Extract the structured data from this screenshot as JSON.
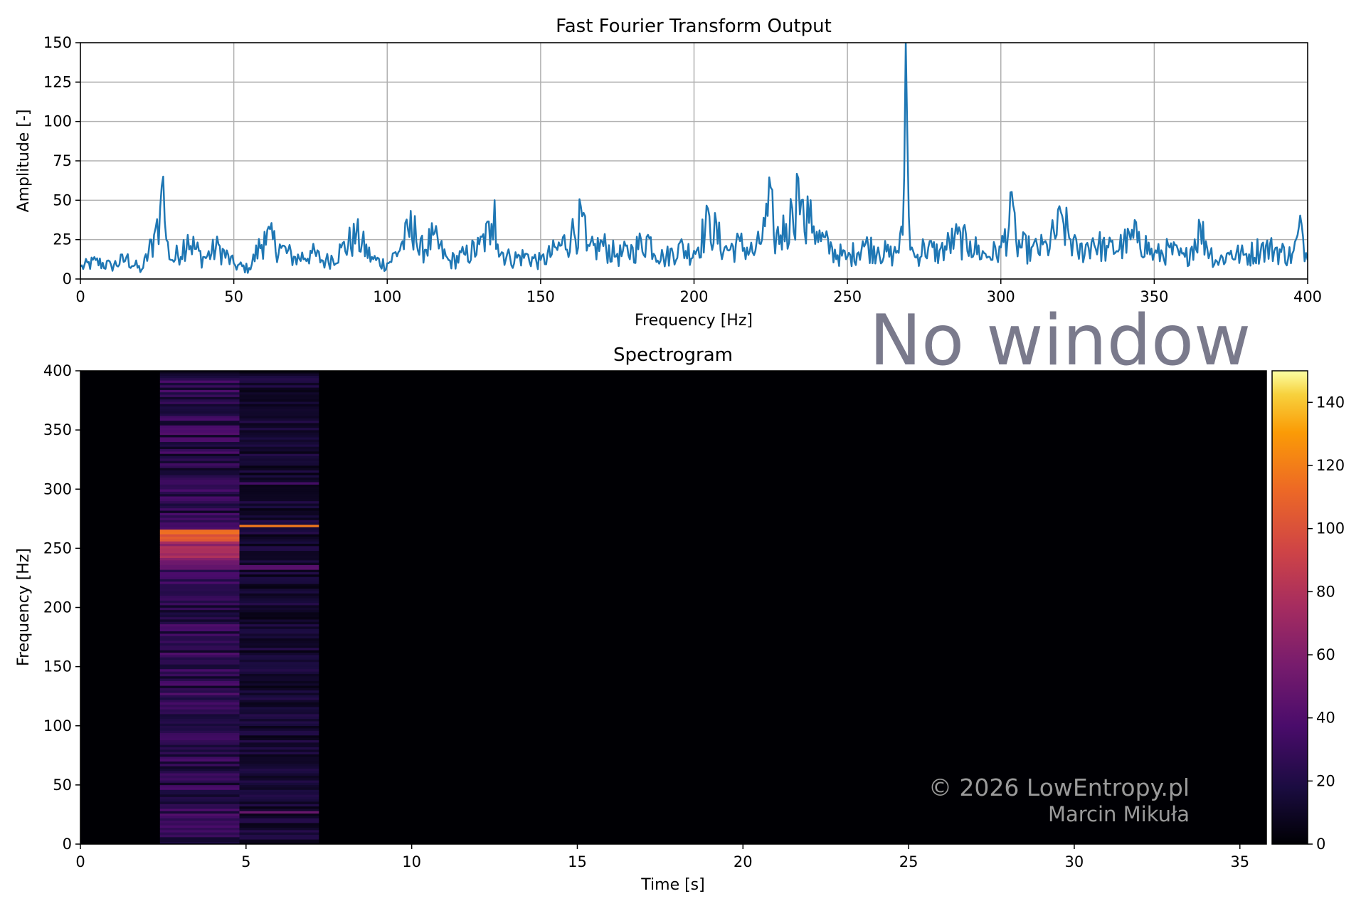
{
  "overlay_label": "No window",
  "watermark": {
    "line1": "© 2026 LowEntropy.pl",
    "line2": "Marcin Mikuła"
  },
  "colors": {
    "fft_line": "#1f77b4",
    "grid": "#b0b0b0",
    "overlay_text": "#7a7a8c",
    "watermark_text": "#9a9a9a",
    "spectrogram_background": "#000004"
  },
  "chart_data": [
    {
      "type": "line",
      "title": "Fast Fourier Transform Output",
      "xlabel": "Frequency [Hz]",
      "ylabel": "Amplitude [-]",
      "xlim": [
        0,
        400
      ],
      "ylim": [
        0,
        150
      ],
      "xticks": [
        0,
        50,
        100,
        150,
        200,
        250,
        300,
        350,
        400
      ],
      "yticks": [
        0,
        25,
        50,
        75,
        100,
        125,
        150
      ],
      "grid": true,
      "series": [
        {
          "x": [
            0,
            5,
            10,
            15,
            20,
            24,
            25,
            26,
            27,
            28,
            30,
            35,
            40,
            45,
            50,
            55,
            60,
            65,
            70,
            75,
            80,
            85,
            90,
            95,
            100,
            105,
            109,
            110,
            115,
            120,
            125,
            130,
            134,
            135,
            136,
            140,
            145,
            150,
            155,
            160,
            164,
            165,
            170,
            175,
            180,
            185,
            190,
            195,
            200,
            205,
            210,
            215,
            220,
            224,
            225,
            226,
            230,
            232,
            234,
            235,
            236,
            238,
            240,
            245,
            250,
            255,
            260,
            265,
            268,
            269,
            270,
            271,
            272,
            275,
            280,
            285,
            290,
            295,
            300,
            304,
            305,
            310,
            315,
            320,
            325,
            330,
            335,
            340,
            345,
            350,
            355,
            360,
            365,
            370,
            375,
            380,
            385,
            390,
            395,
            398,
            400
          ],
          "y": [
            8,
            12,
            9,
            14,
            6,
            28,
            38,
            45,
            65,
            25,
            12,
            28,
            14,
            22,
            10,
            7,
            30,
            22,
            14,
            18,
            12,
            20,
            30,
            14,
            10,
            24,
            40,
            18,
            28,
            12,
            16,
            22,
            35,
            50,
            22,
            14,
            16,
            12,
            20,
            30,
            42,
            18,
            24,
            16,
            20,
            28,
            14,
            22,
            18,
            40,
            20,
            24,
            18,
            40,
            58,
            28,
            35,
            45,
            64,
            50,
            30,
            50,
            30,
            20,
            14,
            24,
            20,
            16,
            28,
            150,
            40,
            20,
            14,
            22,
            18,
            28,
            24,
            16,
            20,
            47,
            24,
            20,
            22,
            40,
            18,
            26,
            20,
            24,
            30,
            16,
            20,
            14,
            34,
            12,
            18,
            16,
            22,
            20,
            16,
            35,
            12
          ]
        }
      ]
    },
    {
      "type": "heatmap",
      "title": "Spectrogram",
      "xlabel": "Time [s]",
      "ylabel": "Frequency [Hz]",
      "xlim": [
        0,
        35.8
      ],
      "ylim": [
        0,
        400
      ],
      "xticks": [
        0,
        5,
        10,
        15,
        20,
        25,
        30,
        35
      ],
      "yticks": [
        0,
        50,
        100,
        150,
        200,
        250,
        300,
        350,
        400
      ],
      "colormap": "inferno",
      "colorbar": {
        "range": [
          0,
          150
        ],
        "ticks": [
          0,
          20,
          40,
          60,
          80,
          100,
          120,
          140
        ]
      },
      "segments": [
        {
          "t_start": 2.4,
          "t_end": 4.8,
          "base_level": 28,
          "bands": [
            {
              "f_low": 255,
              "f_high": 266,
              "level": 100
            },
            {
              "f_low": 242,
              "f_high": 255,
              "level": 70
            },
            {
              "f_low": 232,
              "f_high": 242,
              "level": 55
            }
          ]
        },
        {
          "t_start": 4.8,
          "t_end": 7.2,
          "base_level": 15,
          "bands": [
            {
              "f_low": 269,
              "f_high": 270,
              "level": 120
            },
            {
              "f_low": 233,
              "f_high": 236,
              "level": 50
            },
            {
              "f_low": 26,
              "f_high": 28,
              "level": 55
            },
            {
              "f_low": 304,
              "f_high": 305,
              "level": 40
            }
          ]
        }
      ]
    }
  ]
}
